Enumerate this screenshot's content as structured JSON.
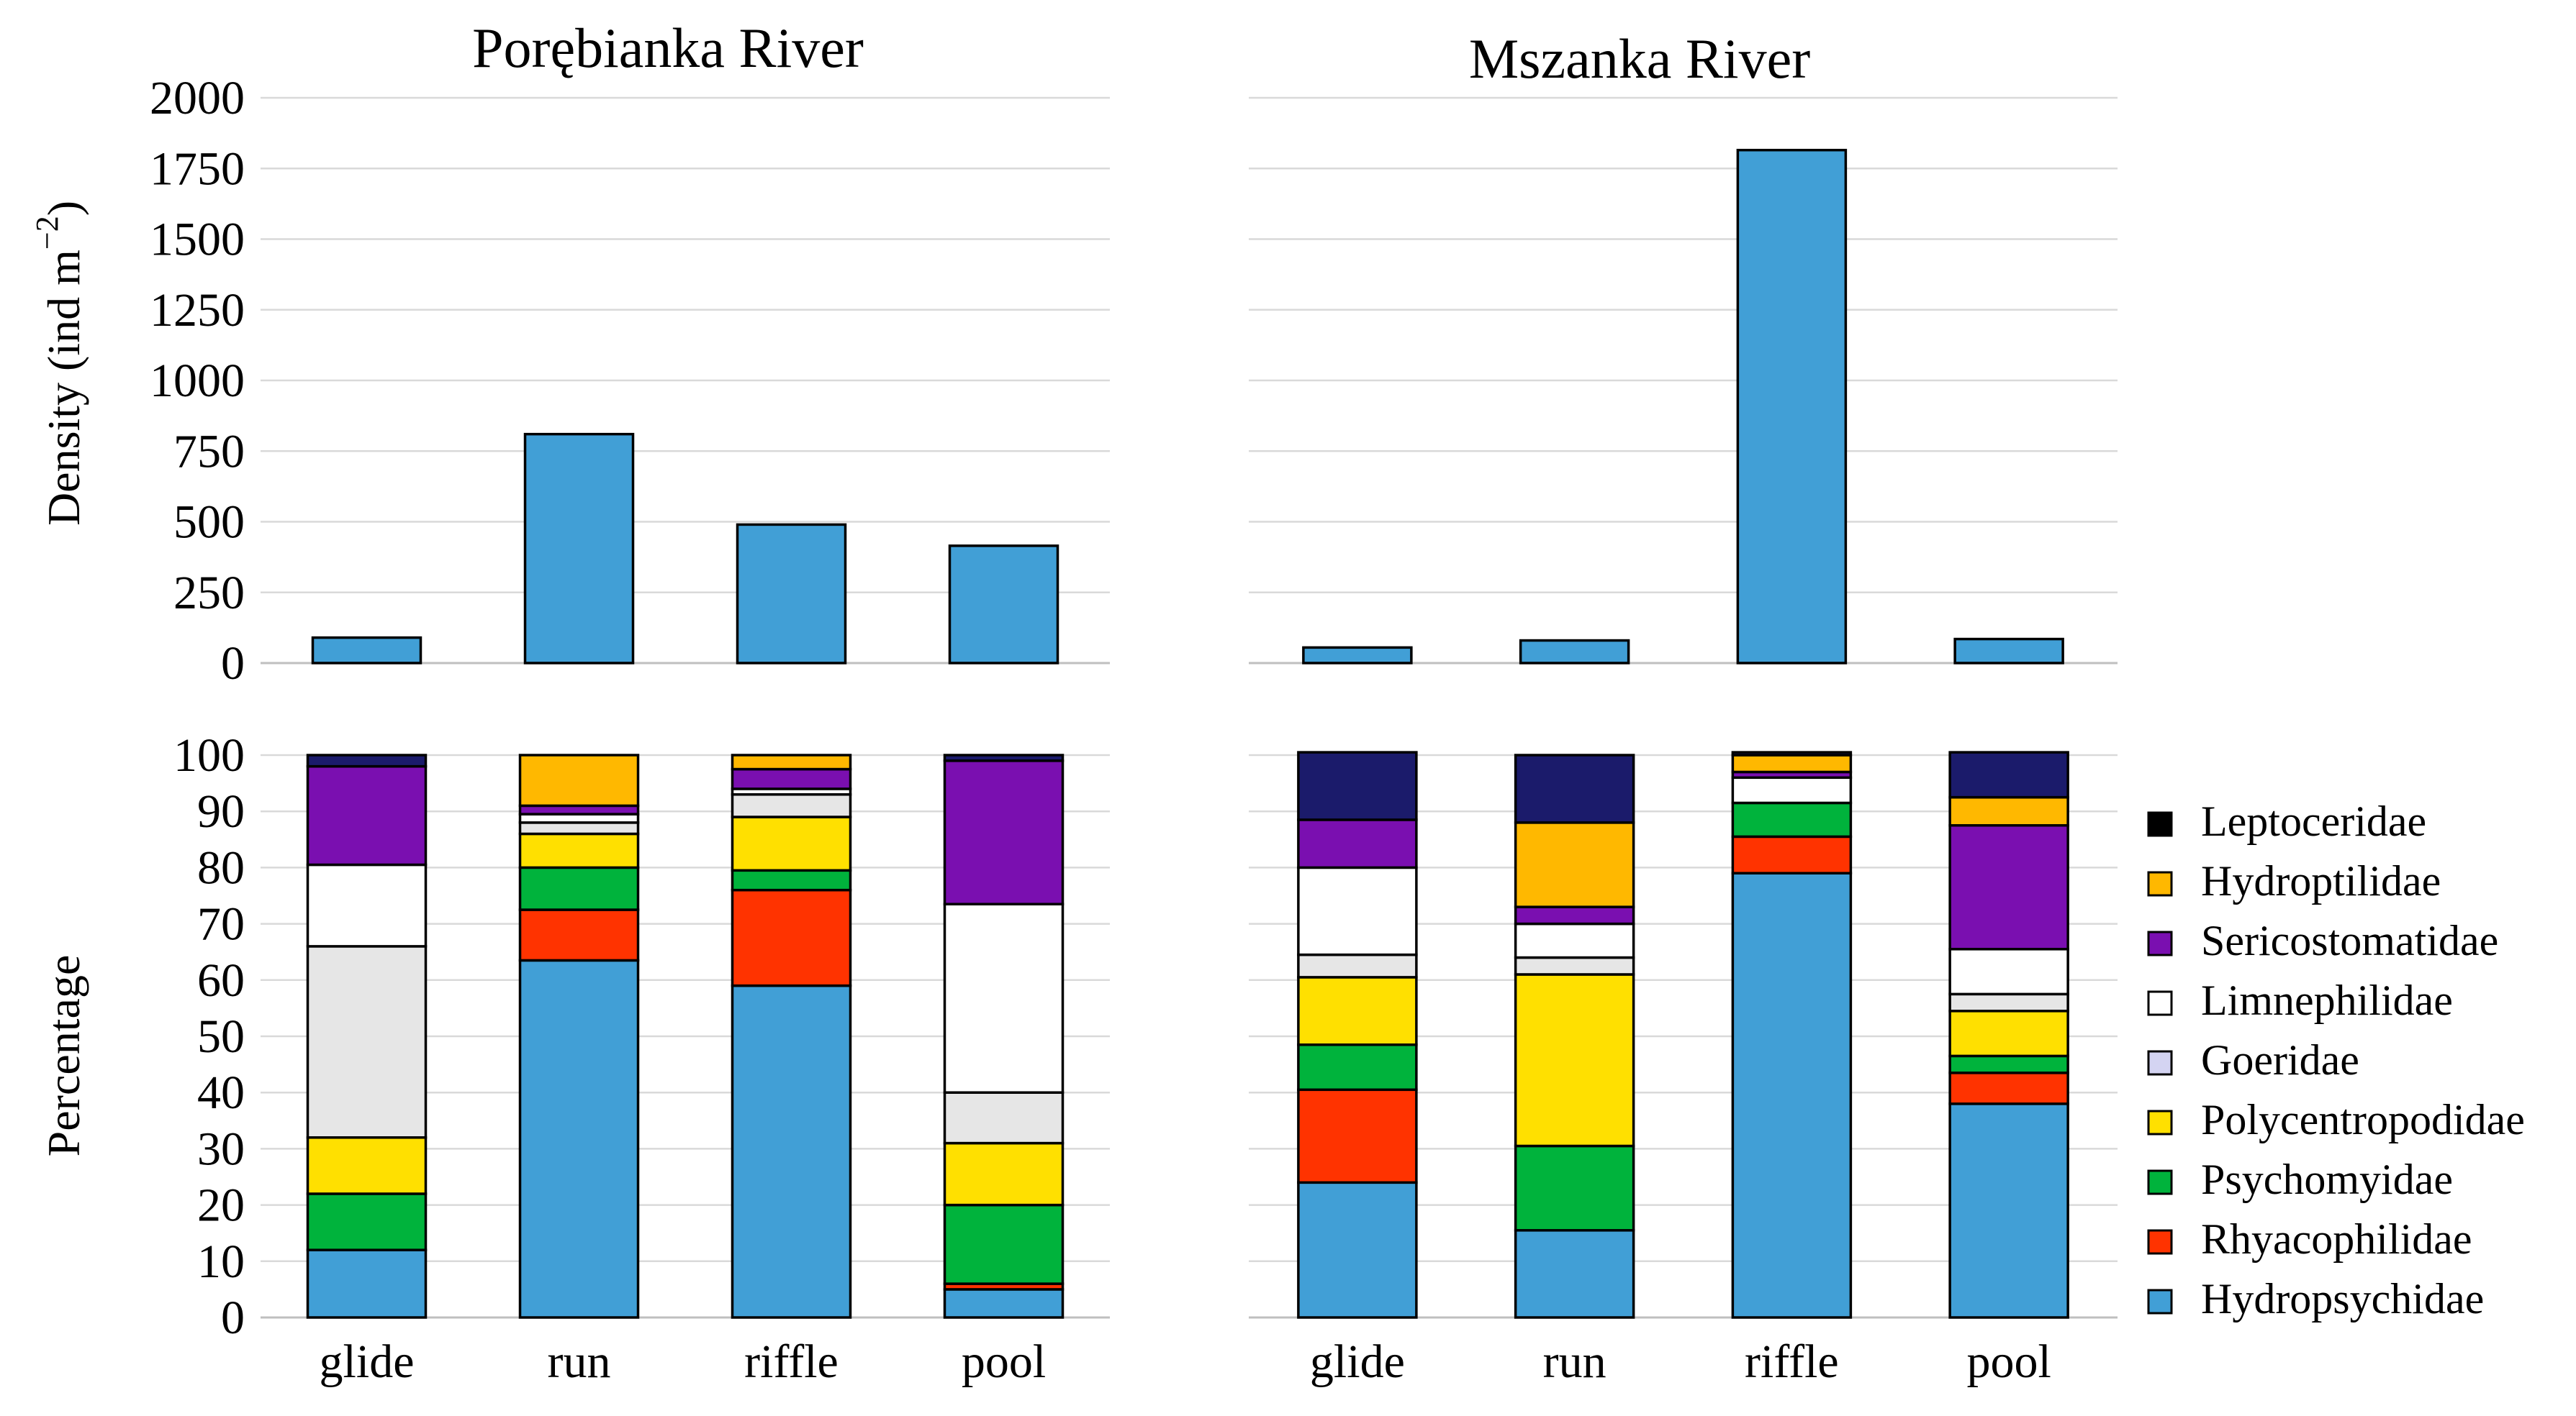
{
  "chart_data": {
    "type": "bar",
    "categories": [
      "glide",
      "run",
      "riffle",
      "pool"
    ],
    "density": {
      "ylabel_main": "Density (ind m",
      "ylabel_sup": "−2",
      "ylabel_close": ")",
      "ylim": [
        0,
        2000
      ],
      "yticks": [
        "0",
        "250",
        "500",
        "750",
        "1000",
        "1250",
        "1500",
        "1750",
        "2000"
      ],
      "color": "#419fd6",
      "panels": [
        {
          "title": "Porębianka River",
          "values": [
            90,
            810,
            490,
            415
          ]
        },
        {
          "title": "Mszanka River",
          "values": [
            55,
            80,
            1815,
            85
          ]
        }
      ]
    },
    "composition": {
      "type": "stacked-bar",
      "ylabel": "Percentage",
      "ylim": [
        0,
        100
      ],
      "yticks": [
        "0",
        "10",
        "20",
        "30",
        "40",
        "50",
        "60",
        "70",
        "80",
        "90",
        "100"
      ],
      "families": [
        "Hydropsychidae",
        "Rhyacophilidae",
        "Psychomyidae",
        "Polycentropodidae",
        "Goeridae",
        "Limnephilidae",
        "Sericostomatidae",
        "Hydroptilidae",
        "Leptoceridae"
      ],
      "family_colors": [
        "#419fd6",
        "#ff3300",
        "#00b33c",
        "#ffe000",
        "#e6e6e6",
        "#ffffff",
        "#7a0fb0",
        "#ffb800",
        "#1b1b6b"
      ],
      "legend_order": [
        "Leptoceridae",
        "Hydroptilidae",
        "Sericostomatidae",
        "Limnephilidae",
        "Goeridae",
        "Polycentropodidae",
        "Psychomyidae",
        "Rhyacophilidae",
        "Hydropsychidae"
      ],
      "legend_colors": [
        "#000000",
        "#ffb800",
        "#7a0fb0",
        "#ffffff",
        "#d4d4f2",
        "#ffe000",
        "#00b33c",
        "#ff3300",
        "#419fd6"
      ],
      "panels": [
        {
          "title": "Porębianka River",
          "series": [
            [
              12,
              63.5,
              59,
              5
            ],
            [
              0,
              9,
              17,
              1
            ],
            [
              10,
              7.5,
              3.5,
              14
            ],
            [
              10,
              6,
              9.5,
              11
            ],
            [
              34,
              2,
              4,
              9
            ],
            [
              14.5,
              1.5,
              1,
              33.5
            ],
            [
              17.5,
              1.5,
              3.5,
              25.5
            ],
            [
              0,
              9,
              2.5,
              0
            ],
            [
              2,
              0,
              0,
              1
            ]
          ]
        },
        {
          "title": "Mszanka River",
          "series": [
            [
              24,
              15.5,
              79,
              38
            ],
            [
              16.5,
              0,
              6.5,
              5.5
            ],
            [
              8,
              15,
              6,
              3
            ],
            [
              12,
              30.5,
              0,
              8
            ],
            [
              4,
              3,
              0,
              3
            ],
            [
              15.5,
              6,
              4.5,
              8
            ],
            [
              8.5,
              3,
              1,
              22
            ],
            [
              0,
              15,
              3,
              5
            ],
            [
              12,
              12,
              0.5,
              8
            ]
          ]
        }
      ]
    }
  }
}
